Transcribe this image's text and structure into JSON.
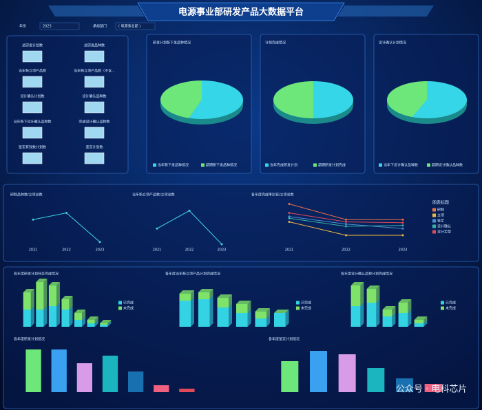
{
  "header": {
    "title": "电源事业部研发产品大数据平台"
  },
  "filters": [
    {
      "label": "年份",
      "value": "2023"
    },
    {
      "label": "承担部门",
      "value": "( 电源事业部 )"
    }
  ],
  "kpis": [
    {
      "label": "总研发计划数"
    },
    {
      "label": "总研发品种数"
    },
    {
      "label": "当年新立项产品数"
    },
    {
      "label": "当年新立项产品数（不含..."
    },
    {
      "label": "设计确认计划数"
    },
    {
      "label": "设计确认品种数"
    },
    {
      "label": "当年新下设计确认品种数"
    },
    {
      "label": "完成设计确认品种数"
    },
    {
      "label": "鉴定有效数计划数"
    },
    {
      "label": "鉴定计划数"
    }
  ],
  "watermark": "公众号 · 电科芯片",
  "chart_data": [
    {
      "type": "pie",
      "title": "研发计划新下发品种情况",
      "categories": [
        "当年新下发品种情况",
        "超期新下发品种情况"
      ],
      "values": [
        55,
        45
      ],
      "colors": [
        "#35d6e8",
        "#6ee77a"
      ]
    },
    {
      "type": "pie",
      "title": "计划完成情况",
      "categories": [
        "当年完成研发计划",
        "超期研发计划完成"
      ],
      "values": [
        50,
        50
      ],
      "colors": [
        "#35d6e8",
        "#6ee77a"
      ]
    },
    {
      "type": "pie",
      "title": "设计确认计划情况",
      "categories": [
        "当年下设计确认品种数",
        "超期设计确认品种数"
      ],
      "values": [
        56,
        44
      ],
      "colors": [
        "#35d6e8",
        "#6ee77a"
      ]
    },
    {
      "type": "line",
      "title": "研制品种数/立项总数",
      "categories": [
        "2021",
        "2022",
        "2023"
      ],
      "values": [
        55,
        70,
        5
      ],
      "color": "#3fd4e0",
      "ylim": [
        0,
        100
      ]
    },
    {
      "type": "line",
      "title": "当年新立项产品数/立项总数",
      "categories": [
        "2021",
        "2022",
        "2023"
      ],
      "values": [
        35,
        75,
        0
      ],
      "color": "#3fd4e0",
      "ylim": [
        0,
        100
      ]
    },
    {
      "type": "line",
      "title": "各年度完成率比较/立项总数",
      "legend_title": "图表标题",
      "categories": [
        "2021",
        "2022",
        "2023"
      ],
      "ylim": [
        0,
        100
      ],
      "series": [
        {
          "name": "研制",
          "color": "#e8714a",
          "values": [
            90,
            55,
            55
          ]
        },
        {
          "name": "立项",
          "color": "#f0b840",
          "values": [
            50,
            20,
            20
          ]
        },
        {
          "name": "鉴定",
          "color": "#4a8fd0",
          "values": [
            62,
            45,
            35
          ]
        },
        {
          "name": "设计确认",
          "color": "#3ab3a8",
          "values": [
            58,
            40,
            42
          ]
        },
        {
          "name": "设计定型",
          "color": "#e04a5a",
          "values": [
            70,
            50,
            48
          ]
        }
      ]
    },
    {
      "type": "bar3d",
      "title": "各年度研发计划任务完成情况",
      "categories": [
        null,
        null,
        null,
        null,
        null,
        null,
        null
      ],
      "ylim": [
        0,
        70
      ],
      "series": [
        {
          "name": "已完成",
          "color": "#33d3e3",
          "values": [
            25,
            25,
            30,
            25,
            10,
            5,
            3
          ]
        },
        {
          "name": "未完成",
          "color": "#7ee368",
          "values": [
            25,
            40,
            30,
            15,
            10,
            5,
            2
          ]
        }
      ]
    },
    {
      "type": "bar3d",
      "title": "各年度当年新立项产品计划完成情况",
      "categories": [
        null,
        null,
        null,
        null,
        null,
        null
      ],
      "ylim": [
        0,
        70
      ],
      "series": [
        {
          "name": "已完成",
          "color": "#33d3e3",
          "values": [
            38,
            40,
            28,
            20,
            12,
            20
          ]
        },
        {
          "name": "未完成",
          "color": "#7ee368",
          "values": [
            10,
            10,
            14,
            13,
            10,
            0
          ]
        }
      ]
    },
    {
      "type": "bar3d",
      "title": "各年度设计确认品种计划完成情况",
      "categories": [
        null,
        null,
        null,
        null,
        null
      ],
      "ylim": [
        0,
        70
      ],
      "series": [
        {
          "name": "已完成",
          "color": "#33d3e3",
          "values": [
            30,
            35,
            15,
            20,
            5
          ]
        },
        {
          "name": "未完成",
          "color": "#7ee368",
          "values": [
            30,
            20,
            10,
            15,
            5
          ]
        }
      ]
    },
    {
      "type": "bar",
      "title": "各年度研发计划情况",
      "categories": [
        null,
        null,
        null,
        null,
        null,
        null,
        null
      ],
      "values": [
        62,
        62,
        42,
        53,
        30,
        10,
        5
      ],
      "colors": [
        "#6ee77a",
        "#3aa0f0",
        "#d79be8",
        "#1bb5c0",
        "#1870b0",
        "#f06080",
        "#e04a5a"
      ],
      "ylim": [
        0,
        70
      ]
    },
    {
      "type": "bar",
      "title": "各年度鉴定计划情况",
      "categories": [
        null,
        null,
        null,
        null,
        null,
        null
      ],
      "values": [
        45,
        60,
        55,
        35,
        20,
        12
      ],
      "colors": [
        "#6ee77a",
        "#3aa0f0",
        "#d79be8",
        "#1bb5c0",
        "#1870b0",
        "#f06080"
      ],
      "ylim": [
        0,
        70
      ]
    }
  ]
}
